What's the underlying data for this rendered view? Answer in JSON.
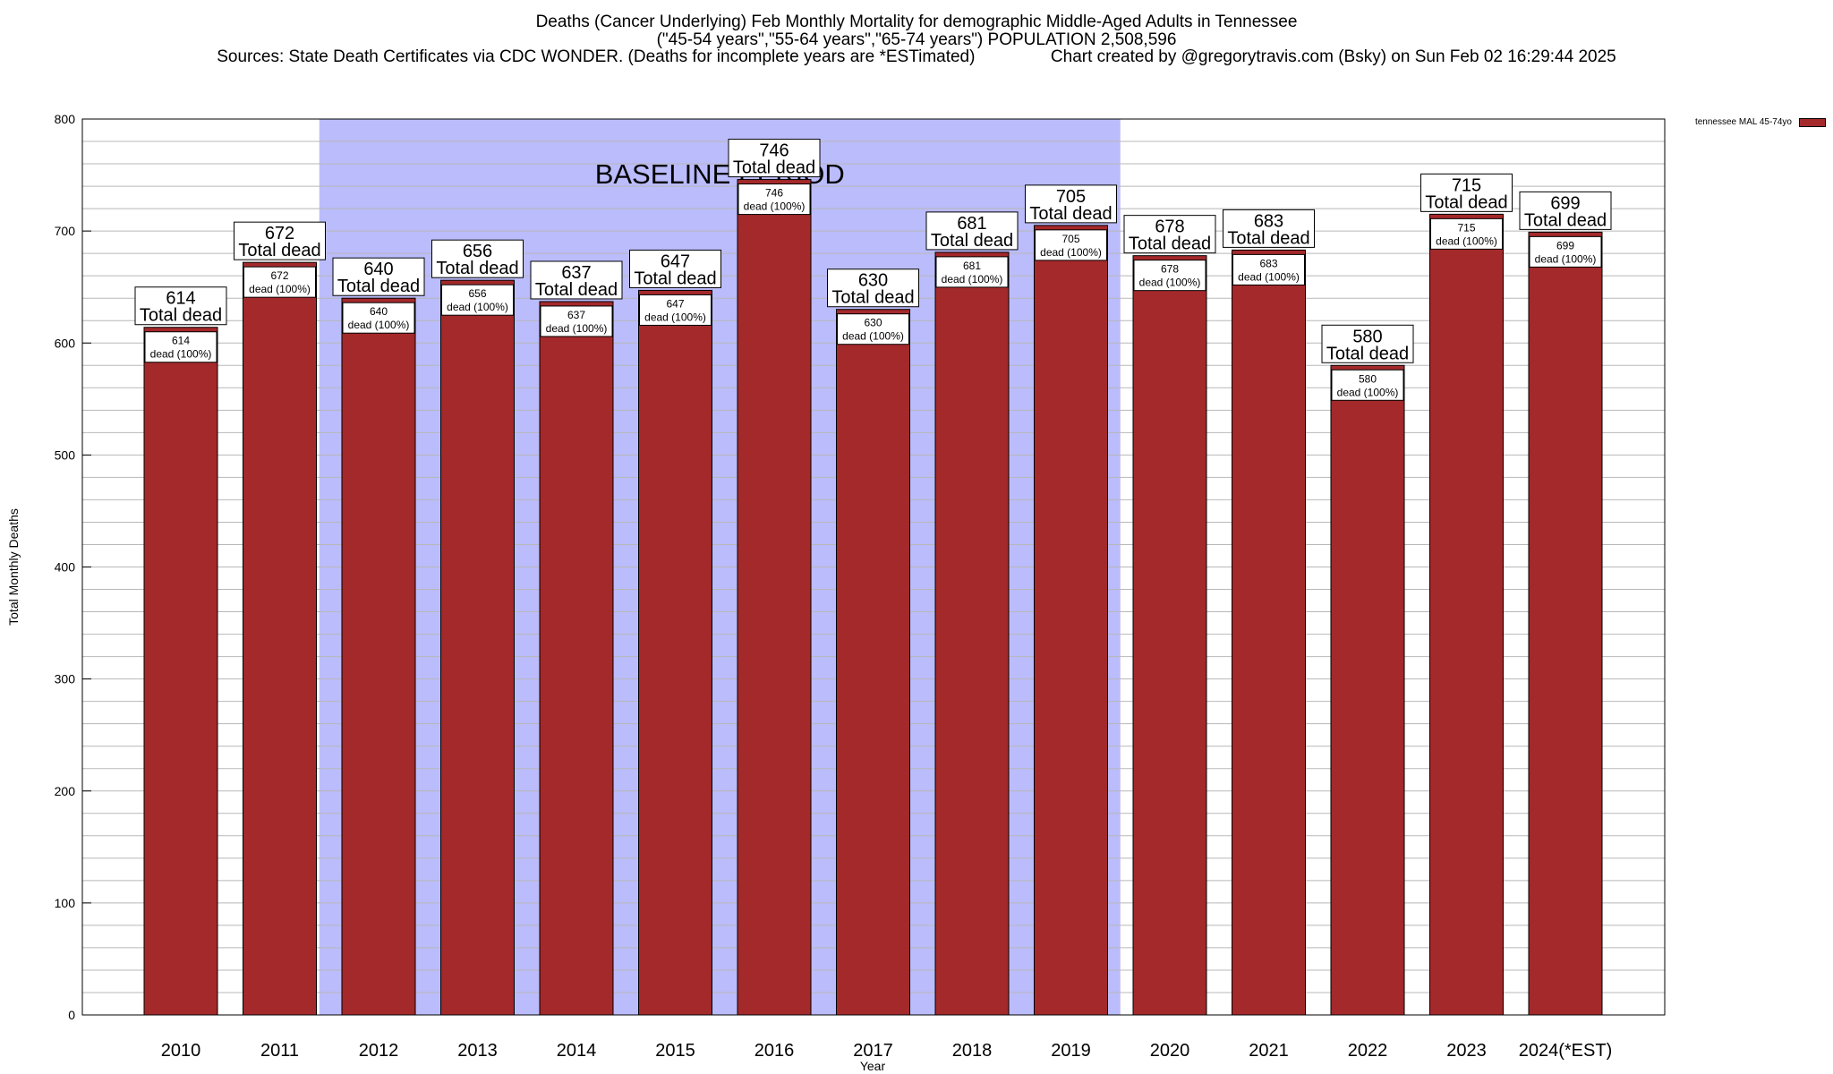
{
  "title_lines": [
    "Deaths (Cancer Underlying) Feb Monthly Mortality for demographic Middle-Aged Adults in Tennessee",
    "(\"45-54 years\",\"55-64 years\",\"65-74 years\") POPULATION 2,508,596",
    "Sources: State Death Certificates via CDC WONDER. (Deaths for incomplete years are *ESTimated)                Chart created by @gregorytravis.com (Bsky) on Sun Feb 02 16:29:44 2025"
  ],
  "legend": {
    "label": "tennessee MAL 45-74yo",
    "color": "#a4292b"
  },
  "colors": {
    "bar": "#a4292b",
    "baseline": "#bbbcfb",
    "grid": "#b8b8b8"
  },
  "chart_data": {
    "type": "bar",
    "categories": [
      "2010",
      "2011",
      "2012",
      "2013",
      "2014",
      "2015",
      "2016",
      "2017",
      "2018",
      "2019",
      "2020",
      "2021",
      "2022",
      "2023",
      "2024(*EST)"
    ],
    "series": [
      {
        "name": "tennessee MAL 45-74yo",
        "values": [
          614,
          672,
          640,
          656,
          637,
          647,
          746,
          630,
          681,
          705,
          678,
          683,
          580,
          715,
          699
        ]
      }
    ],
    "total_label": "Total dead",
    "inner_label": "dead (100%)",
    "xlabel": "Year",
    "ylabel": "Total Monthly Deaths",
    "ylim": [
      0,
      800
    ],
    "yticks": [
      0,
      100,
      200,
      300,
      400,
      500,
      600,
      700,
      800
    ],
    "minor_step": 20,
    "grid": true,
    "legend_position": "top-right",
    "baseline": {
      "label": "BASELINE PERIOD",
      "start": "2012",
      "end": "2019"
    }
  }
}
